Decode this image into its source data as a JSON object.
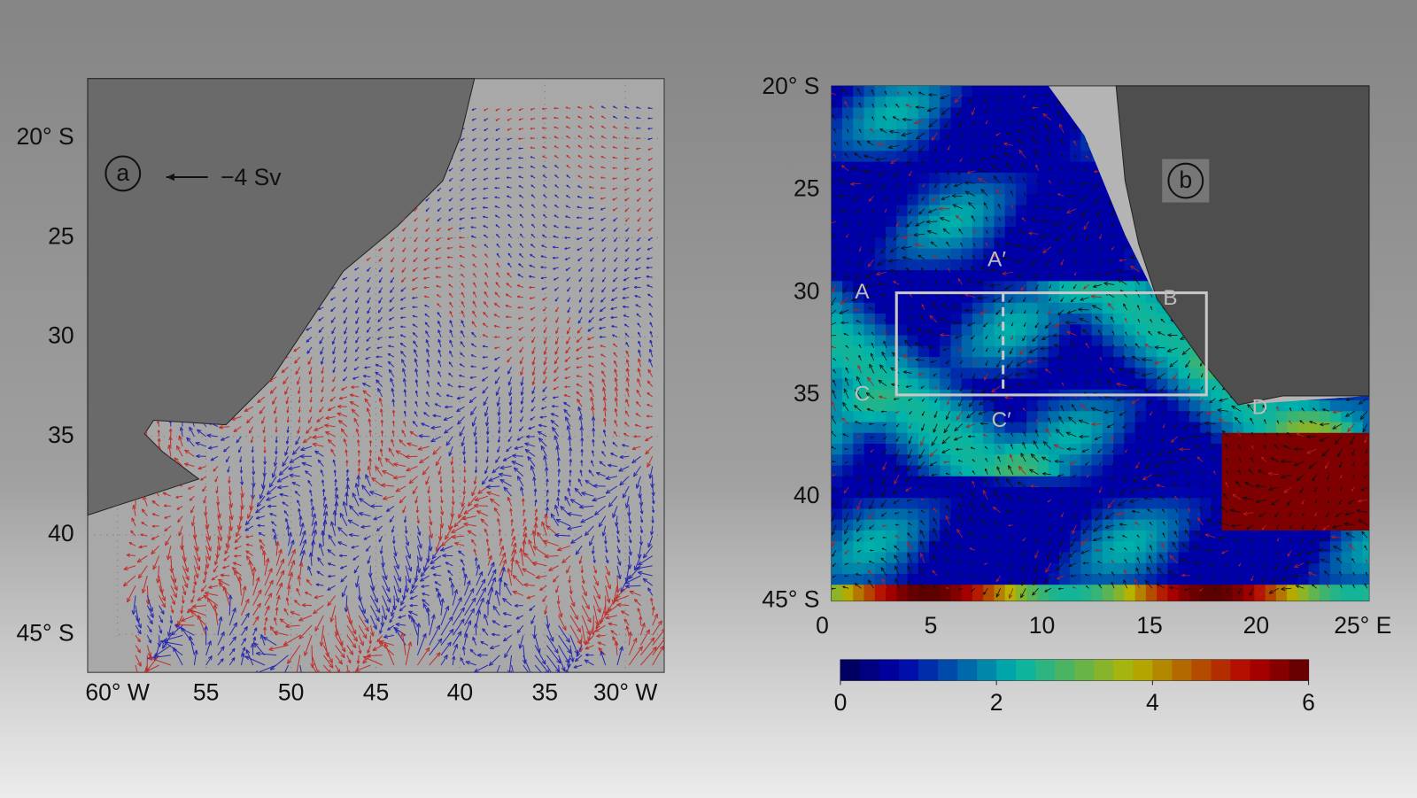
{
  "panel_a": {
    "label": "a",
    "scale_label": "−4 Sv",
    "lat_labels": [
      "20° S",
      "25",
      "30",
      "35",
      "40",
      "45° S"
    ],
    "lon_labels": [
      "60° W",
      "55",
      "50",
      "45",
      "40",
      "35",
      "30° W"
    ]
  },
  "panel_b": {
    "label": "b",
    "lat_labels": [
      "20° S",
      "25",
      "30",
      "35",
      "40",
      "45° S"
    ],
    "lon_labels": [
      "0",
      "5",
      "10",
      "15",
      "20",
      "25° E"
    ],
    "section_labels": [
      "A",
      "A′",
      "B",
      "C",
      "C′",
      "D"
    ],
    "colorbar": {
      "range": [
        0,
        6
      ],
      "ticks": [
        0,
        2,
        4,
        6
      ]
    }
  }
}
